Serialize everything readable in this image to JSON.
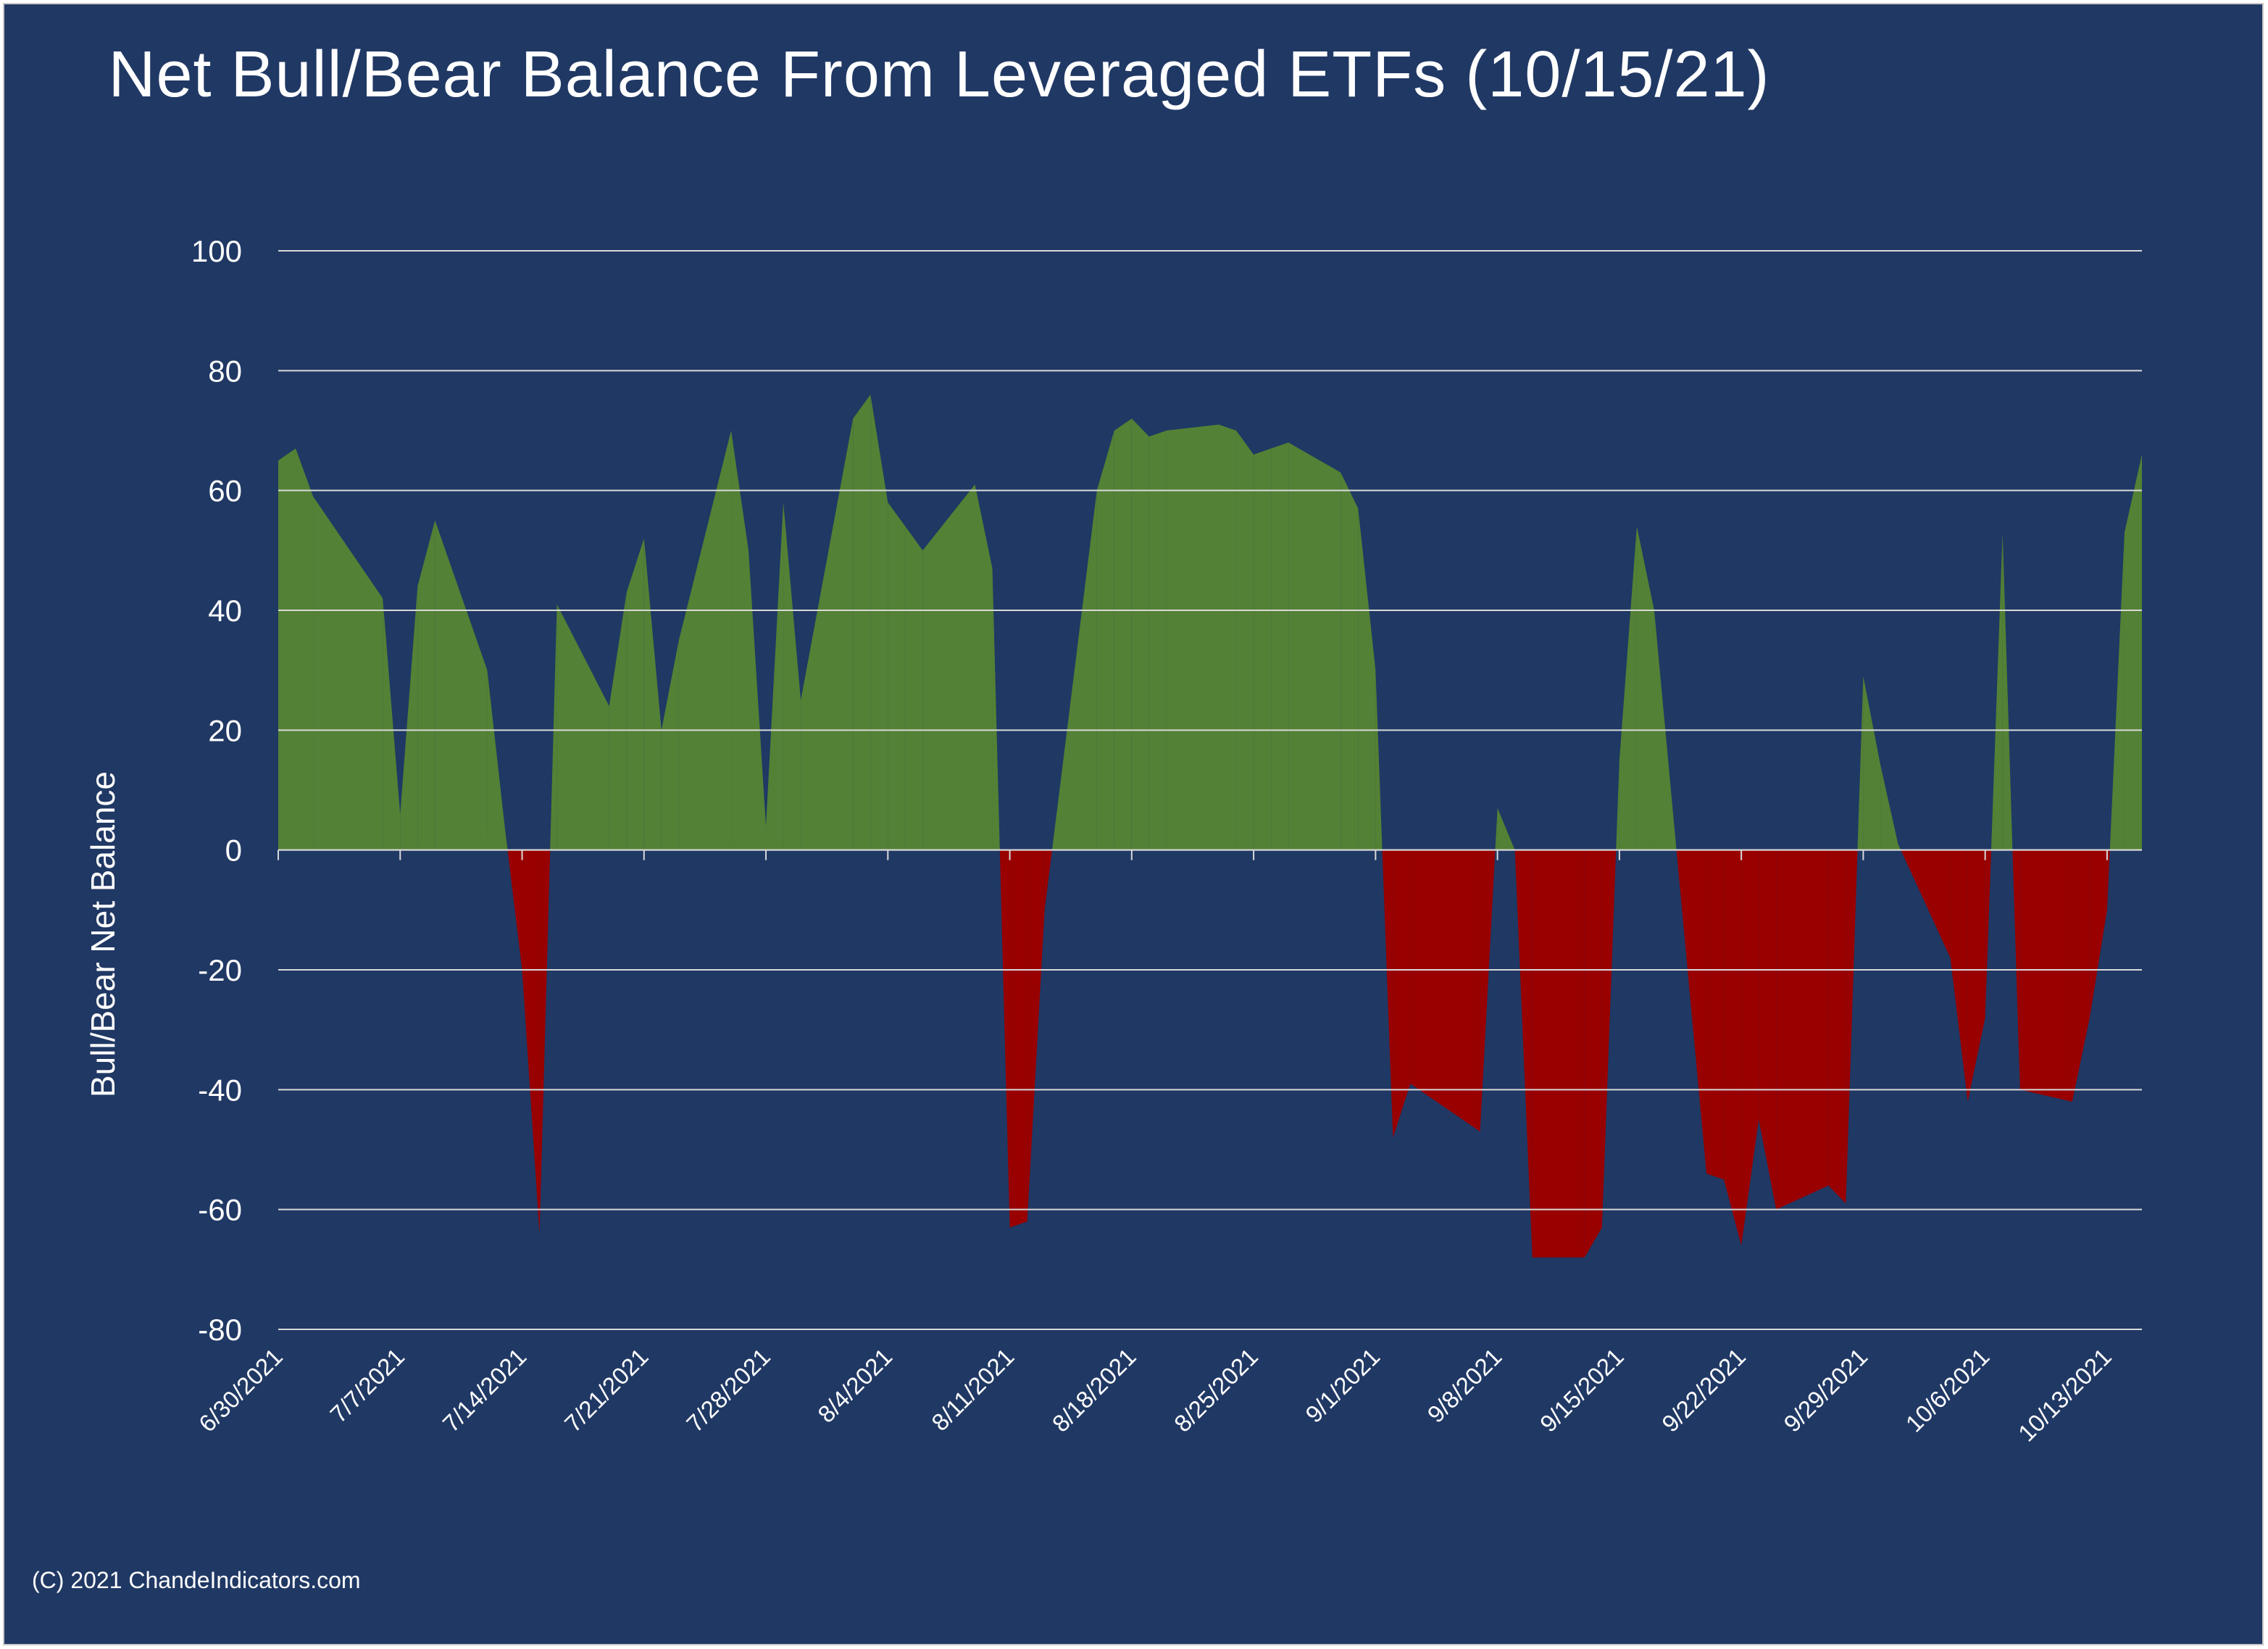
{
  "colors": {
    "background": "#203864",
    "positive": "#538135",
    "negative": "#990000",
    "gridline": "#d9d9d9",
    "text": "#ffffff"
  },
  "footer": {
    "copyright": "(C) 2021 ChandeIndicators.com"
  },
  "chart_data": {
    "type": "area",
    "title": "Net Bull/Bear Balance From Leveraged ETFs (10/15/21)",
    "xlabel": "",
    "ylabel": "Bull/Bear Net Balance",
    "ylim": [
      -80,
      100
    ],
    "yticks": [
      -80,
      -60,
      -40,
      -20,
      0,
      20,
      40,
      60,
      80,
      100
    ],
    "x_tick_labels": [
      "6/30/2021",
      "7/7/2021",
      "7/14/2021",
      "7/21/2021",
      "7/28/2021",
      "8/4/2021",
      "8/11/2021",
      "8/18/2021",
      "8/25/2021",
      "9/1/2021",
      "9/8/2021",
      "9/15/2021",
      "9/22/2021",
      "9/29/2021",
      "10/6/2021",
      "10/13/2021"
    ],
    "xlim": [
      "2021-06-30",
      "2021-10-15"
    ],
    "grid": true,
    "legend": "none",
    "fill_rule": "green above zero, red below zero",
    "series": [
      {
        "x": [
          "2021-06-30",
          "2021-07-01",
          "2021-07-02",
          "2021-07-06",
          "2021-07-07",
          "2021-07-08",
          "2021-07-09",
          "2021-07-12",
          "2021-07-13",
          "2021-07-14",
          "2021-07-15",
          "2021-07-16",
          "2021-07-19",
          "2021-07-20",
          "2021-07-21",
          "2021-07-22",
          "2021-07-23",
          "2021-07-26",
          "2021-07-27",
          "2021-07-28",
          "2021-07-29",
          "2021-07-30",
          "2021-08-02",
          "2021-08-03",
          "2021-08-04",
          "2021-08-05",
          "2021-08-06",
          "2021-08-09",
          "2021-08-10",
          "2021-08-11",
          "2021-08-12",
          "2021-08-13",
          "2021-08-16",
          "2021-08-17",
          "2021-08-18",
          "2021-08-19",
          "2021-08-20",
          "2021-08-23",
          "2021-08-24",
          "2021-08-25",
          "2021-08-26",
          "2021-08-27",
          "2021-08-30",
          "2021-08-31",
          "2021-09-01",
          "2021-09-02",
          "2021-09-03",
          "2021-09-07",
          "2021-09-08",
          "2021-09-09",
          "2021-09-10",
          "2021-09-13",
          "2021-09-14",
          "2021-09-15",
          "2021-09-16",
          "2021-09-17",
          "2021-09-20",
          "2021-09-21",
          "2021-09-22",
          "2021-09-23",
          "2021-09-24",
          "2021-09-27",
          "2021-09-28",
          "2021-09-29",
          "2021-09-30",
          "2021-10-01",
          "2021-10-04",
          "2021-10-05",
          "2021-10-06",
          "2021-10-07",
          "2021-10-08",
          "2021-10-11",
          "2021-10-12",
          "2021-10-13",
          "2021-10-14",
          "2021-10-15"
        ],
        "values": [
          65,
          67,
          59,
          42,
          6,
          44,
          55,
          30,
          4,
          -20,
          -64,
          41,
          24,
          43,
          52,
          20,
          35,
          70,
          50,
          4,
          58,
          25,
          72,
          76,
          58,
          54,
          50,
          61,
          47,
          -63,
          -62,
          -10,
          60,
          70,
          72,
          69,
          70,
          71,
          70,
          66,
          67,
          68,
          63,
          57,
          30,
          -48,
          -39,
          -47,
          7,
          0,
          -68,
          -68,
          -63,
          15,
          54,
          40,
          -54,
          -55,
          -66,
          -45,
          -60,
          -56,
          -59,
          29,
          14,
          1,
          -18,
          -42,
          -28,
          53,
          -40,
          -42,
          -28,
          -10,
          53,
          66
        ]
      }
    ]
  }
}
